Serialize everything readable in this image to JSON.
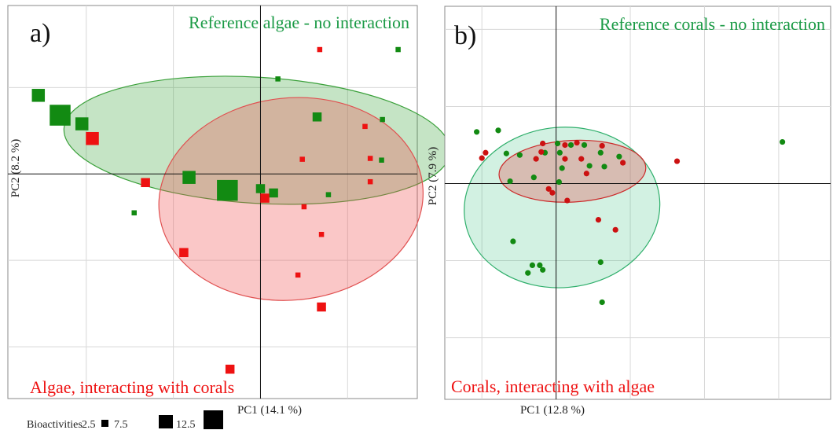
{
  "chart_data": [
    {
      "type": "scatter",
      "panel_label": "a)",
      "xlabel": "PC1 (14.1 %)",
      "ylabel": "PC2 (8.2 %)",
      "xlim": [
        -2.9,
        1.8
      ],
      "ylim": [
        -2.6,
        1.95
      ],
      "grid": true,
      "series": [
        {
          "name": "Reference algae - no interaction",
          "color": "#128a12",
          "points": [
            {
              "x": -2.55,
              "y": 0.91,
              "size": 7.5
            },
            {
              "x": -2.3,
              "y": 0.68,
              "size": 12.5
            },
            {
              "x": -2.05,
              "y": 0.58,
              "size": 7.5
            },
            {
              "x": -1.45,
              "y": -0.45,
              "size": 2.5
            },
            {
              "x": -0.82,
              "y": -0.04,
              "size": 7.5
            },
            {
              "x": -0.38,
              "y": -0.19,
              "size": 12.5
            },
            {
              "x": 0.0,
              "y": -0.17,
              "size": 5.0
            },
            {
              "x": 0.15,
              "y": -0.22,
              "size": 5.0
            },
            {
              "x": 0.2,
              "y": 1.1,
              "size": 2.5
            },
            {
              "x": 0.65,
              "y": 0.66,
              "size": 5.0
            },
            {
              "x": 0.78,
              "y": -0.24,
              "size": 2.5
            },
            {
              "x": 1.4,
              "y": 0.63,
              "size": 2.5
            },
            {
              "x": 1.39,
              "y": 0.16,
              "size": 2.5
            },
            {
              "x": 1.58,
              "y": 1.44,
              "size": 2.5
            }
          ]
        },
        {
          "name": "Algae, interacting with corals",
          "color": "#ee1111",
          "points": [
            {
              "x": -1.93,
              "y": 0.41,
              "size": 7.5
            },
            {
              "x": -1.32,
              "y": -0.1,
              "size": 5.0
            },
            {
              "x": -0.88,
              "y": -0.91,
              "size": 5.0
            },
            {
              "x": -0.35,
              "y": -2.26,
              "size": 5.0
            },
            {
              "x": 0.05,
              "y": -0.28,
              "size": 5.0
            },
            {
              "x": 0.48,
              "y": 0.17,
              "size": 2.5
            },
            {
              "x": 0.43,
              "y": -1.17,
              "size": 2.5
            },
            {
              "x": 0.5,
              "y": -0.38,
              "size": 2.5
            },
            {
              "x": 0.68,
              "y": 1.44,
              "size": 2.5
            },
            {
              "x": 0.7,
              "y": -0.7,
              "size": 2.5
            },
            {
              "x": 0.7,
              "y": -1.54,
              "size": 5.0
            },
            {
              "x": 1.2,
              "y": 0.55,
              "size": 2.5
            },
            {
              "x": 1.26,
              "y": 0.18,
              "size": 2.5
            },
            {
              "x": 1.26,
              "y": -0.09,
              "size": 2.5
            }
          ]
        }
      ],
      "ellipses": [
        {
          "series": "Reference algae - no interaction",
          "cx": -0.04,
          "cy": 0.39,
          "rx": 2.22,
          "ry": 0.73,
          "angle": 3.5
        },
        {
          "series": "Algae, interacting with corals",
          "cx": 0.35,
          "cy": -0.29,
          "rx": 1.52,
          "ry": 1.17,
          "angle": -6
        }
      ],
      "legend": {
        "title": "Bioactivities",
        "sizes": [
          "2.5",
          "7.5",
          "12.5"
        ]
      }
    },
    {
      "type": "scatter",
      "panel_label": "b)",
      "xlabel": "PC1 (12.8 %)",
      "ylabel": "PC2 (7.9 %)",
      "xlim": [
        -1.5,
        3.7
      ],
      "ylim": [
        -2.8,
        2.3
      ],
      "grid": true,
      "series": [
        {
          "name": "Reference corals - no interaction",
          "color": "#128a12",
          "points": [
            {
              "x": -1.07,
              "y": 0.67
            },
            {
              "x": -0.78,
              "y": 0.69
            },
            {
              "x": -0.67,
              "y": 0.39
            },
            {
              "x": -0.62,
              "y": 0.03
            },
            {
              "x": -0.49,
              "y": 0.37
            },
            {
              "x": -0.3,
              "y": 0.08
            },
            {
              "x": -0.15,
              "y": 0.4
            },
            {
              "x": 0.02,
              "y": 0.52
            },
            {
              "x": 0.05,
              "y": 0.4
            },
            {
              "x": 0.08,
              "y": 0.2
            },
            {
              "x": 0.04,
              "y": 0.02
            },
            {
              "x": 0.2,
              "y": 0.5
            },
            {
              "x": 0.45,
              "y": 0.23
            },
            {
              "x": 0.65,
              "y": 0.22
            },
            {
              "x": 0.6,
              "y": 0.4
            },
            {
              "x": 0.85,
              "y": 0.35
            },
            {
              "x": 0.38,
              "y": 0.5
            },
            {
              "x": 3.05,
              "y": 0.54
            },
            {
              "x": -0.58,
              "y": -0.75
            },
            {
              "x": -0.32,
              "y": -1.06
            },
            {
              "x": -0.22,
              "y": -1.06
            },
            {
              "x": -0.18,
              "y": -1.12
            },
            {
              "x": -0.38,
              "y": -1.16
            },
            {
              "x": 0.6,
              "y": -1.02
            },
            {
              "x": 0.62,
              "y": -1.54
            }
          ]
        },
        {
          "name": "Corals, interacting with algae",
          "color": "#cc1111",
          "points": [
            {
              "x": -1.0,
              "y": 0.33
            },
            {
              "x": -0.95,
              "y": 0.4
            },
            {
              "x": -0.27,
              "y": 0.32
            },
            {
              "x": -0.18,
              "y": 0.52
            },
            {
              "x": -0.2,
              "y": 0.41
            },
            {
              "x": 0.12,
              "y": 0.5
            },
            {
              "x": 0.28,
              "y": 0.53
            },
            {
              "x": 0.34,
              "y": 0.32
            },
            {
              "x": 0.12,
              "y": 0.32
            },
            {
              "x": 0.41,
              "y": 0.13
            },
            {
              "x": 0.62,
              "y": 0.49
            },
            {
              "x": 0.9,
              "y": 0.27
            },
            {
              "x": -0.1,
              "y": -0.07
            },
            {
              "x": -0.05,
              "y": -0.12
            },
            {
              "x": 0.15,
              "y": -0.22
            },
            {
              "x": 0.57,
              "y": -0.47
            },
            {
              "x": 0.8,
              "y": -0.6
            },
            {
              "x": 1.63,
              "y": 0.29
            }
          ]
        }
      ],
      "ellipses": [
        {
          "series": "Reference corals - no interaction",
          "cx": 0.08,
          "cy": -0.31,
          "rx": 1.32,
          "ry": 1.04,
          "angle": -5
        },
        {
          "series": "Corals, interacting with algae",
          "cx": 0.22,
          "cy": 0.16,
          "rx": 0.99,
          "ry": 0.4,
          "angle": -3
        }
      ]
    }
  ]
}
